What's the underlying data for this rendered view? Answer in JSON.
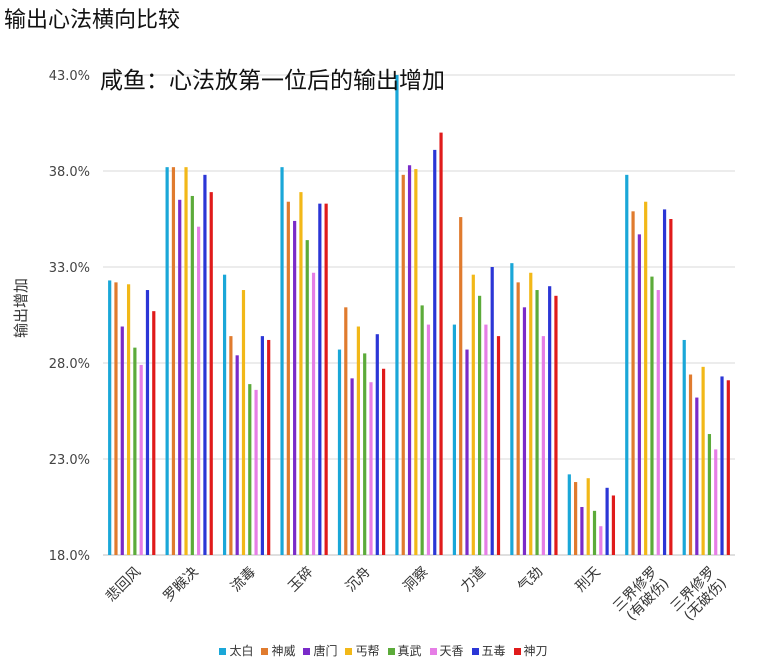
{
  "page_title": "输出心法横向比较",
  "chart_data": {
    "type": "bar",
    "title": "咸鱼：心法放第一位后的输出增加",
    "ylabel": "输出增加",
    "xlabel": "",
    "ylim": [
      0.18,
      0.43
    ],
    "yticks": [
      "18.0%",
      "23.0%",
      "28.0%",
      "33.0%",
      "38.0%",
      "43.0%"
    ],
    "ytick_values": [
      0.18,
      0.23,
      0.28,
      0.33,
      0.38,
      0.43
    ],
    "grid": true,
    "legend_position": "bottom",
    "categories": [
      "悲回风",
      "罗睺决",
      "流毒",
      "玉碎",
      "沉舟",
      "洞察",
      "力道",
      "气劲",
      "刑天",
      "三界修罗\n(有破伤)",
      "三界修罗\n(无破伤)"
    ],
    "series": [
      {
        "name": "太白",
        "color": "#1aa7d8",
        "values": [
          0.323,
          0.382,
          0.326,
          0.382,
          0.287,
          0.43,
          0.3,
          0.332,
          0.222,
          0.378,
          0.292
        ]
      },
      {
        "name": "神威",
        "color": "#e07b2e",
        "values": [
          0.322,
          0.382,
          0.294,
          0.364,
          0.309,
          0.378,
          0.356,
          0.322,
          0.218,
          0.359,
          0.274
        ]
      },
      {
        "name": "唐门",
        "color": "#7a2bc9",
        "values": [
          0.299,
          0.365,
          0.284,
          0.354,
          0.272,
          0.383,
          0.287,
          0.309,
          0.205,
          0.347,
          0.262
        ]
      },
      {
        "name": "丐帮",
        "color": "#f2b818",
        "values": [
          0.321,
          0.382,
          0.318,
          0.369,
          0.299,
          0.381,
          0.326,
          0.327,
          0.22,
          0.364,
          0.278
        ]
      },
      {
        "name": "真武",
        "color": "#5cab3a",
        "values": [
          0.288,
          0.367,
          0.269,
          0.344,
          0.285,
          0.31,
          0.315,
          0.318,
          0.203,
          0.325,
          0.243
        ]
      },
      {
        "name": "天香",
        "color": "#e67ee6",
        "values": [
          0.279,
          0.351,
          0.266,
          0.327,
          0.27,
          0.3,
          0.3,
          0.294,
          0.195,
          0.318,
          0.235
        ]
      },
      {
        "name": "五毒",
        "color": "#2b36d6",
        "values": [
          0.318,
          0.378,
          0.294,
          0.363,
          0.295,
          0.391,
          0.33,
          0.32,
          0.215,
          0.36,
          0.273
        ]
      },
      {
        "name": "神刀",
        "color": "#e01b1b",
        "values": [
          0.307,
          0.369,
          0.292,
          0.363,
          0.277,
          0.4,
          0.294,
          0.315,
          0.211,
          0.355,
          0.271
        ]
      }
    ]
  }
}
